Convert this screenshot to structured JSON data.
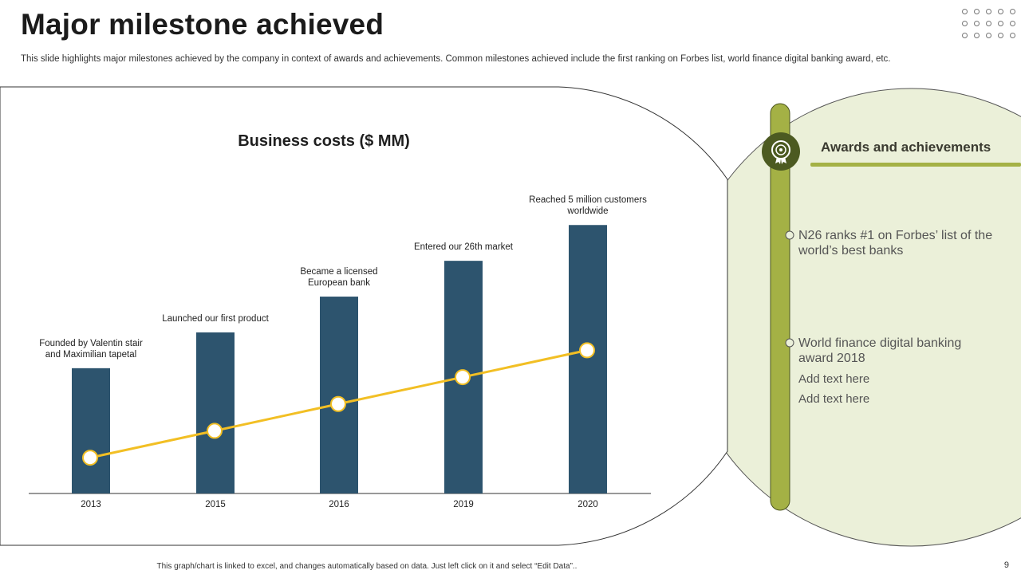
{
  "page": {
    "title": "Major milestone achieved",
    "subtitle": "This slide highlights major milestones achieved by the company in context of awards and achievements. Common milestones achieved include the first ranking on Forbes list, world finance digital banking award, etc.",
    "footer_note": "This graph/chart is linked to excel, and changes automatically based on data. Just left click on it and select “Edit Data”..",
    "page_number": "9"
  },
  "panel": {
    "title": "Awards and  achievements",
    "awards": [
      "N26 ranks #1 on Forbes’ list of the world’s best banks",
      "World finance digital banking award 2018"
    ],
    "notes": [
      "Add text here",
      "Add text here"
    ],
    "medal_icon": "award-medal-icon"
  },
  "colors": {
    "bar": "#2d546e",
    "line": "#f2bf24",
    "panel_bg": "#ebf0d9",
    "accent_green": "#a4b145",
    "medal": "#4c5a21"
  },
  "chart_data": {
    "type": "bar",
    "title": "Business costs ($ MM)",
    "categories": [
      "2013",
      "2015",
      "2016",
      "2019",
      "2020"
    ],
    "series": [
      {
        "name": "Business costs",
        "type": "bar",
        "values": [
          35,
          45,
          55,
          65,
          75
        ]
      },
      {
        "name": "Trend",
        "type": "line",
        "values": [
          10,
          17.5,
          25,
          32.5,
          40
        ]
      }
    ],
    "annotations": [
      "Founded by Valentin stair and Maximilian tapetal",
      "Launched our first product",
      "Became a licensed European bank",
      "Entered our 26th market",
      "Reached 5 million customers worldwide"
    ],
    "ylim": [
      0,
      100
    ],
    "xlabel": "",
    "ylabel": ""
  }
}
